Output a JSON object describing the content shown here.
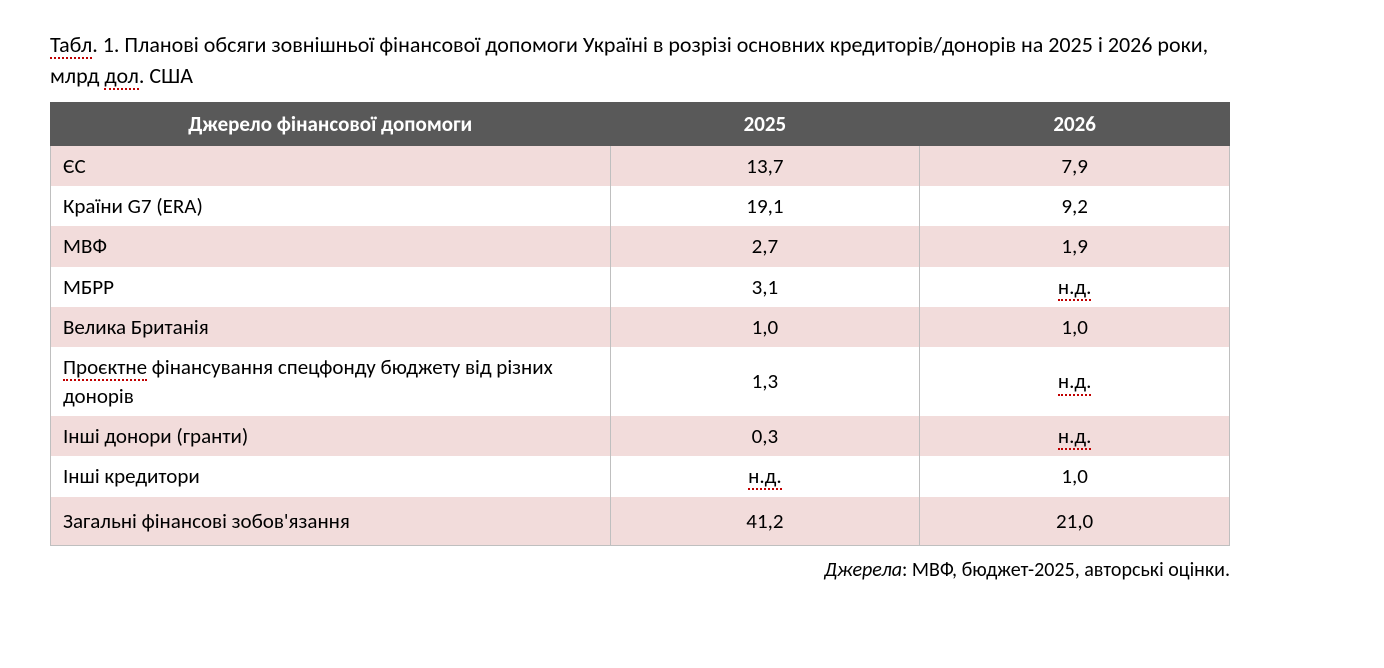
{
  "caption": {
    "prefix": "Табл",
    "label": ". 1. Планові обсяги зовнішньої фінансової допомоги Україні в розрізі основних кредиторів/донорів на 2025 і 2026 роки, млрд ",
    "word1": "дол",
    "suffix": ". США"
  },
  "table": {
    "header_bg": "#595959",
    "header_text_color": "#ffffff",
    "row_colors": {
      "odd": "#f2dcdb",
      "even": "#ffffff"
    },
    "border_color": "#bfbfbf",
    "columns": [
      {
        "label": "Джерело фінансової допомоги",
        "align": "left"
      },
      {
        "label": "2025",
        "align": "center"
      },
      {
        "label": "2026",
        "align": "center"
      }
    ],
    "rows": [
      {
        "class": "odd",
        "c0": "ЄС",
        "c1": "13,7",
        "c2": "7,9"
      },
      {
        "class": "even",
        "c0": "Країни G7 (ERA)",
        "c1": "19,1",
        "c2": "9,2"
      },
      {
        "class": "odd",
        "c0": "МВФ",
        "c1": "2,7",
        "c2": "1,9"
      },
      {
        "class": "even",
        "c0": "МБРР",
        "c1": "3,1",
        "c2_u": "н.д."
      },
      {
        "class": "odd",
        "c0": "Велика Британія",
        "c1": "1,0",
        "c2": "1,0"
      },
      {
        "class": "even",
        "c0_pre": "Проєктне",
        "c0_post": " фінансування спецфонду бюджету від різних донорів",
        "c1": "1,3",
        "c2_u": "н.д."
      },
      {
        "class": "odd",
        "c0": "Інші донори (гранти)",
        "c1": "0,3",
        "c2_u": "н.д."
      },
      {
        "class": "even",
        "c0": "Інші кредитори",
        "c1_u": "н.д.",
        "c2": "1,0"
      },
      {
        "class": "total",
        "c0": "Загальні фінансові зобов'язання",
        "c1": "41,2",
        "c2": "21,0"
      }
    ]
  },
  "source": {
    "label": "Джерела",
    "text": ": МВФ, бюджет-2025, авторські оцінки."
  }
}
